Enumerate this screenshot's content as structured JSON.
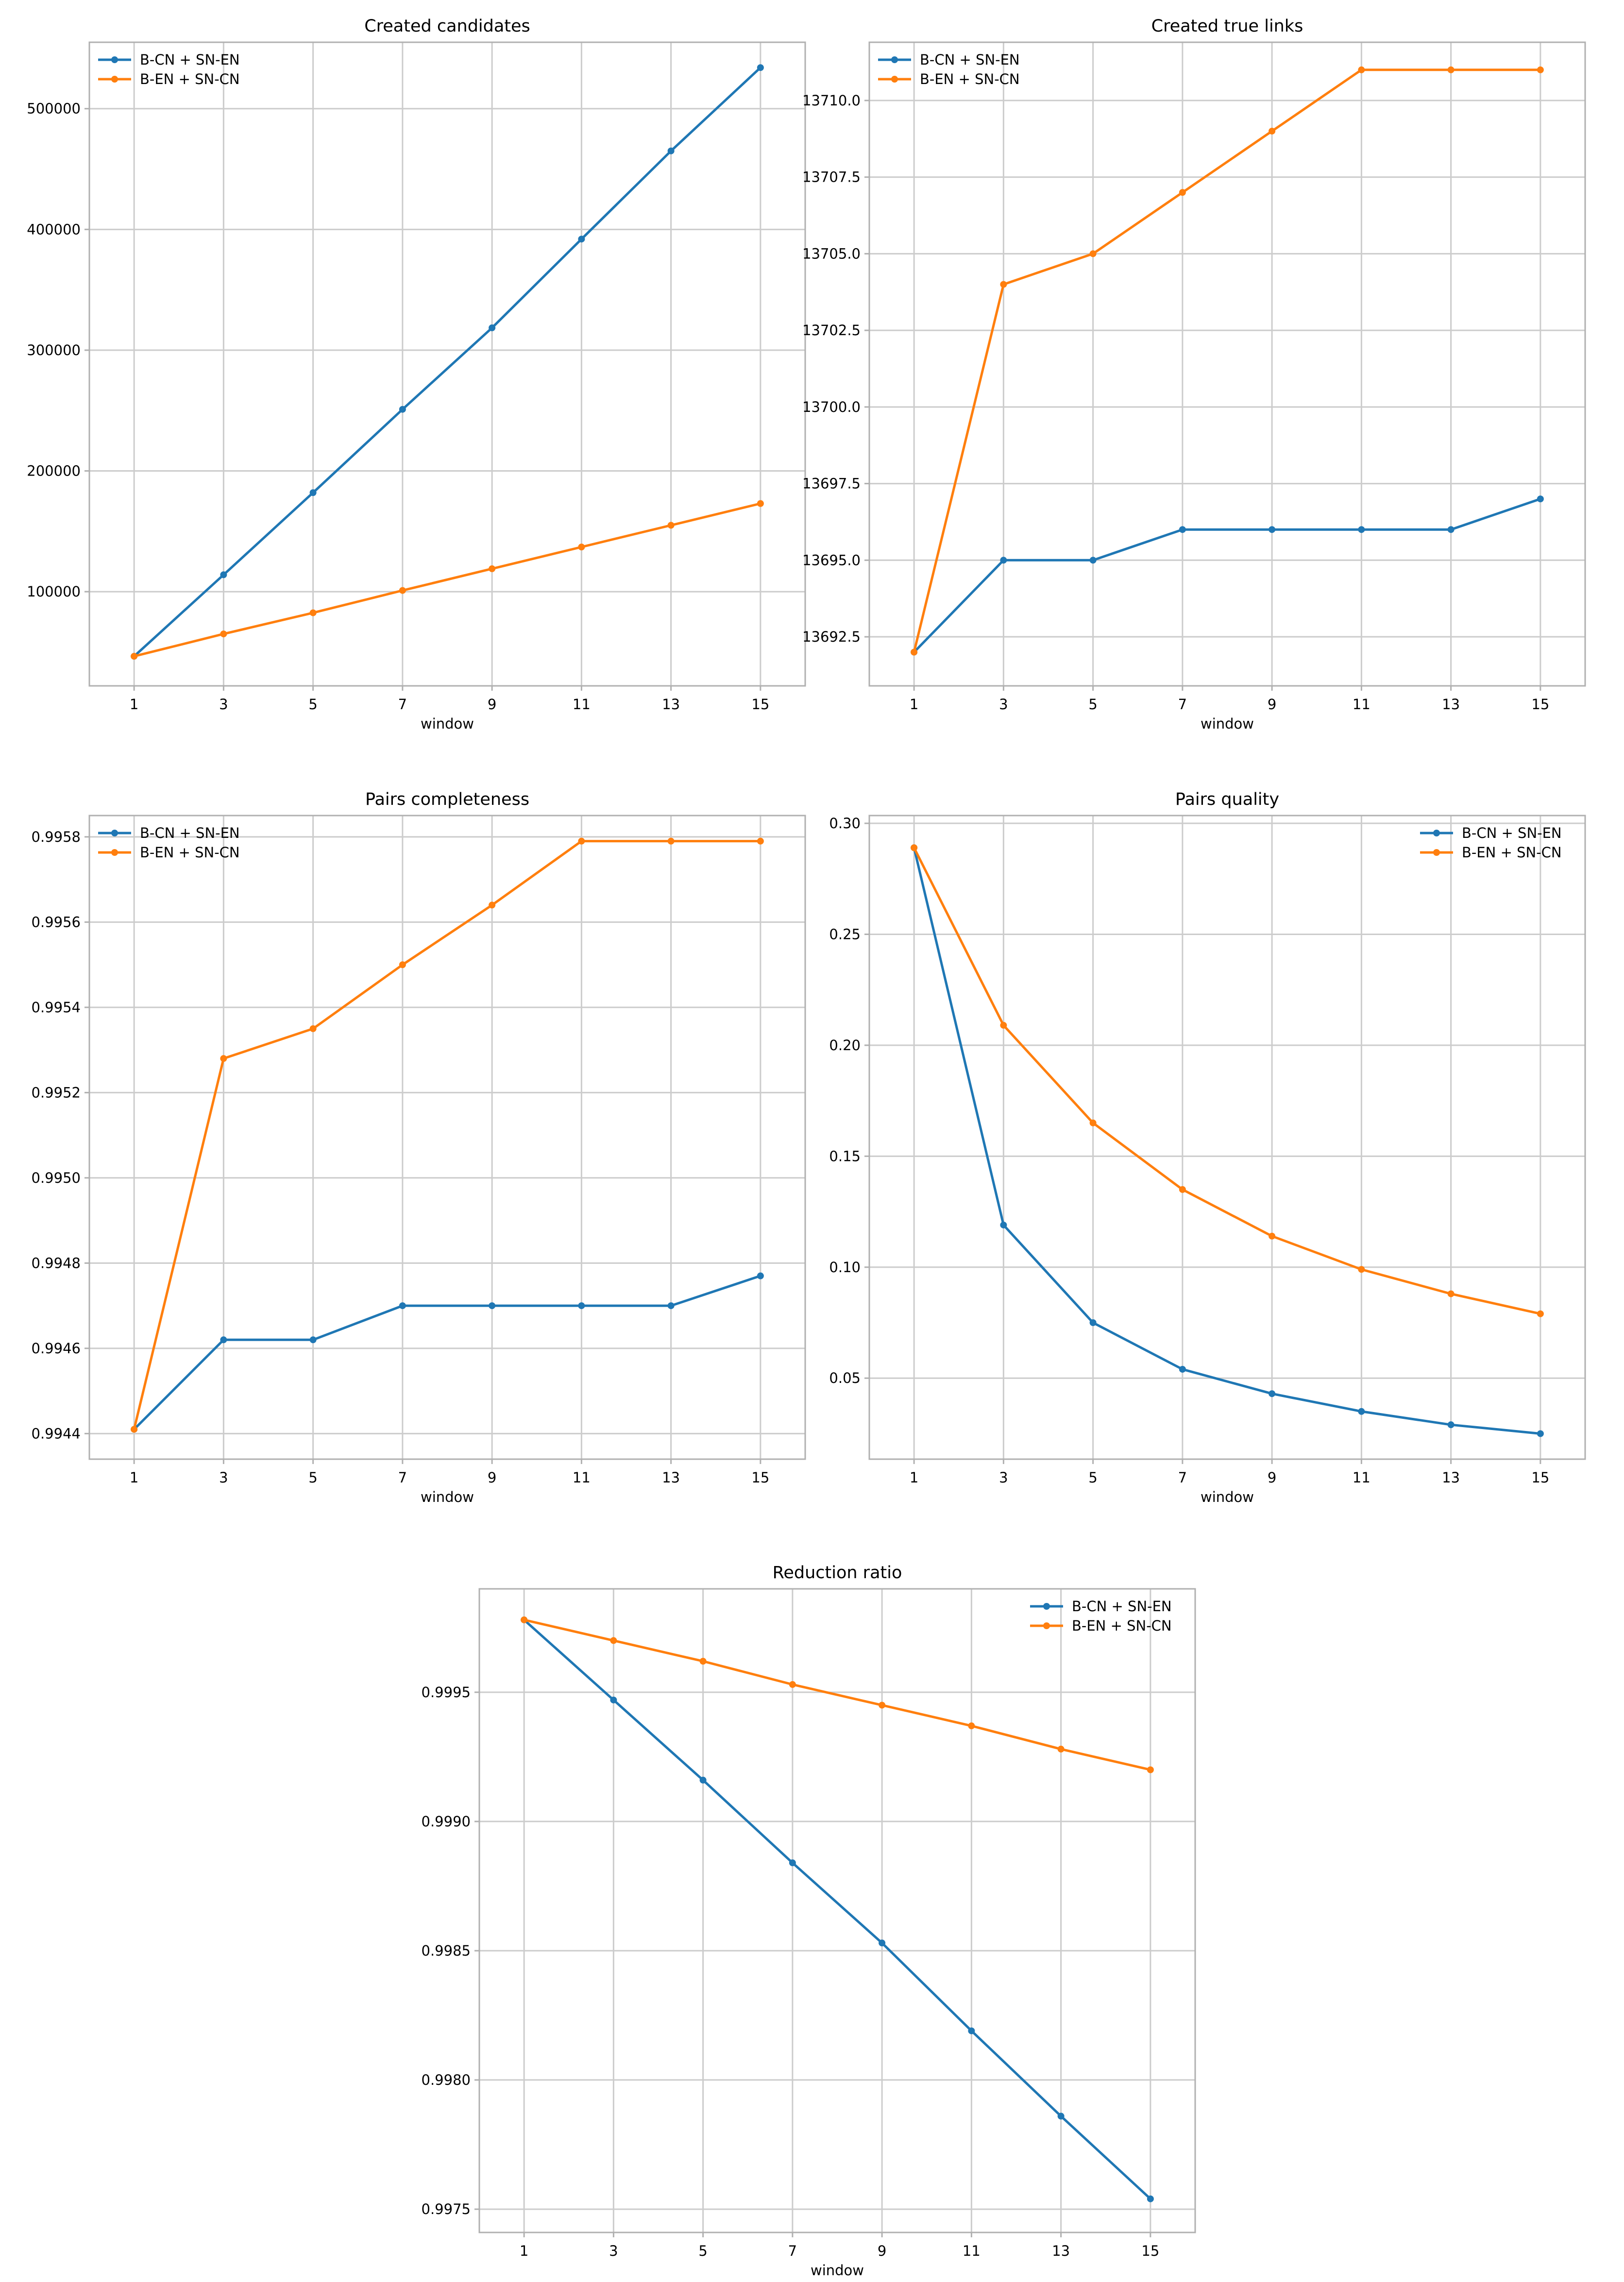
{
  "colors": {
    "series1": "#1f77b4",
    "series2": "#ff7f0e",
    "grid": "#cccccc",
    "axis": "#b0b0b0",
    "text": "#000000"
  },
  "chart_data": [
    {
      "type": "line",
      "title": "Created candidates",
      "xlabel": "window",
      "ylabel": "",
      "x": [
        1,
        3,
        5,
        7,
        9,
        11,
        13,
        15
      ],
      "xlim": [
        0.0,
        16.0
      ],
      "ylim": [
        22000,
        555000
      ],
      "yticks": [
        100000,
        200000,
        300000,
        400000,
        500000
      ],
      "ytick_labels": [
        "100000",
        "200000",
        "300000",
        "400000",
        "500000"
      ],
      "legend_loc": "upper-left",
      "grid": true,
      "series": [
        {
          "name": "B-CN + SN-EN",
          "values": [
            46500,
            114000,
            182000,
            251000,
            318500,
            392000,
            465000,
            534000
          ]
        },
        {
          "name": "B-EN + SN-CN",
          "values": [
            46500,
            65000,
            82500,
            101000,
            119000,
            137000,
            155000,
            173000
          ]
        }
      ]
    },
    {
      "type": "line",
      "title": "Created true links",
      "xlabel": "window",
      "ylabel": "",
      "x": [
        1,
        3,
        5,
        7,
        9,
        11,
        13,
        15
      ],
      "xlim": [
        0.0,
        16.0
      ],
      "ylim": [
        13690.9,
        13711.9
      ],
      "yticks": [
        13692.5,
        13695.0,
        13697.5,
        13700.0,
        13702.5,
        13705.0,
        13707.5,
        13710.0
      ],
      "ytick_labels": [
        "13692.5",
        "13695.0",
        "13697.5",
        "13700.0",
        "13702.5",
        "13705.0",
        "13707.5",
        "13710.0"
      ],
      "legend_loc": "upper-left",
      "grid": true,
      "series": [
        {
          "name": "B-CN + SN-EN",
          "values": [
            13692,
            13695,
            13695,
            13696,
            13696,
            13696,
            13696,
            13697
          ]
        },
        {
          "name": "B-EN + SN-CN",
          "values": [
            13692,
            13704,
            13705,
            13707,
            13709,
            13711,
            13711,
            13711
          ]
        }
      ]
    },
    {
      "type": "line",
      "title": "Pairs completeness",
      "xlabel": "window",
      "ylabel": "",
      "x": [
        1,
        3,
        5,
        7,
        9,
        11,
        13,
        15
      ],
      "xlim": [
        0.0,
        16.0
      ],
      "ylim": [
        0.99434,
        0.99585
      ],
      "yticks": [
        0.9944,
        0.9946,
        0.9948,
        0.995,
        0.9952,
        0.9954,
        0.9956,
        0.9958
      ],
      "ytick_labels": [
        "0.9944",
        "0.9946",
        "0.9948",
        "0.9950",
        "0.9952",
        "0.9954",
        "0.9956",
        "0.9958"
      ],
      "legend_loc": "upper-left",
      "grid": true,
      "series": [
        {
          "name": "B-CN + SN-EN",
          "values": [
            0.99441,
            0.99462,
            0.99462,
            0.9947,
            0.9947,
            0.9947,
            0.9947,
            0.99477
          ]
        },
        {
          "name": "B-EN + SN-CN",
          "values": [
            0.99441,
            0.99528,
            0.99535,
            0.9955,
            0.99564,
            0.99579,
            0.99579,
            0.99579
          ]
        }
      ]
    },
    {
      "type": "line",
      "title": "Pairs quality",
      "xlabel": "window",
      "ylabel": "",
      "x": [
        1,
        3,
        5,
        7,
        9,
        11,
        13,
        15
      ],
      "xlim": [
        0.0,
        16.0
      ],
      "ylim": [
        0.0135,
        0.3035
      ],
      "yticks": [
        0.05,
        0.1,
        0.15,
        0.2,
        0.25,
        0.3
      ],
      "ytick_labels": [
        "0.05",
        "0.10",
        "0.15",
        "0.20",
        "0.25",
        "0.30"
      ],
      "legend_loc": "upper-right",
      "grid": true,
      "series": [
        {
          "name": "B-CN + SN-EN",
          "values": [
            0.289,
            0.119,
            0.075,
            0.054,
            0.043,
            0.035,
            0.029,
            0.025
          ]
        },
        {
          "name": "B-EN + SN-CN",
          "values": [
            0.289,
            0.209,
            0.165,
            0.135,
            0.114,
            0.099,
            0.088,
            0.079
          ]
        }
      ]
    },
    {
      "type": "line",
      "title": "Reduction ratio",
      "xlabel": "window",
      "ylabel": "",
      "x": [
        1,
        3,
        5,
        7,
        9,
        11,
        13,
        15
      ],
      "xlim": [
        0.0,
        16.0
      ],
      "ylim": [
        0.99741,
        0.9999
      ],
      "yticks": [
        0.9975,
        0.998,
        0.9985,
        0.999,
        0.9995
      ],
      "ytick_labels": [
        "0.9975",
        "0.9980",
        "0.9985",
        "0.9990",
        "0.9995"
      ],
      "legend_loc": "upper-right",
      "grid": true,
      "series": [
        {
          "name": "B-CN + SN-EN",
          "values": [
            0.99978,
            0.99947,
            0.99916,
            0.99884,
            0.99853,
            0.99819,
            0.99786,
            0.99754
          ]
        },
        {
          "name": "B-EN + SN-CN",
          "values": [
            0.99978,
            0.9997,
            0.99962,
            0.99953,
            0.99945,
            0.99937,
            0.99928,
            0.9992
          ]
        }
      ]
    }
  ]
}
